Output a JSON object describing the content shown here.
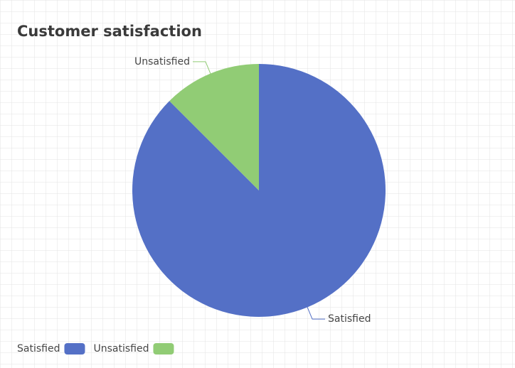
{
  "chart_data": {
    "type": "pie",
    "title": "Customer satisfaction",
    "categories": [
      "Satisfied",
      "Unsatisfied"
    ],
    "values": [
      87.5,
      12.5
    ],
    "colors": [
      "#5470c6",
      "#91cc75"
    ],
    "legend": "bottom-left"
  }
}
